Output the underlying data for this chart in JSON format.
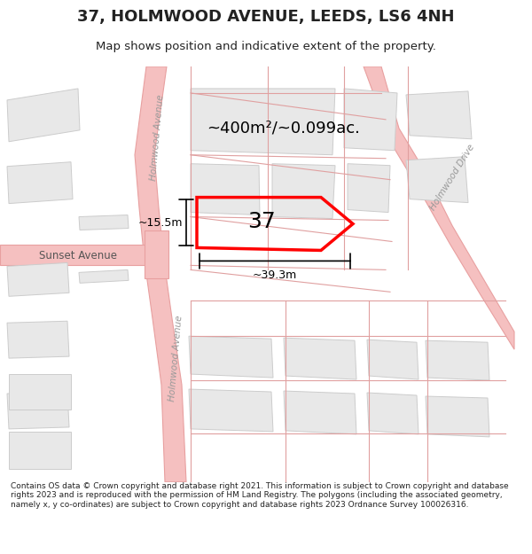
{
  "title": "37, HOLMWOOD AVENUE, LEEDS, LS6 4NH",
  "subtitle": "Map shows position and indicative extent of the property.",
  "footer": "Contains OS data © Crown copyright and database right 2021. This information is subject to Crown copyright and database rights 2023 and is reproduced with the permission of HM Land Registry. The polygons (including the associated geometry, namely x, y co-ordinates) are subject to Crown copyright and database rights 2023 Ordnance Survey 100026316.",
  "bg_color": "#ffffff",
  "road_color": "#f5c0c0",
  "road_outline": "#e8a0a0",
  "building_fill": "#e8e8e8",
  "building_outline": "#cccccc",
  "highlight_color": "#ff0000",
  "dim_color": "#e0a0a0",
  "text_color": "#222222",
  "area_label": "~400m²/~0.099ac.",
  "number_label": "37",
  "width_label": "~39.3m",
  "height_label": "~15.5m",
  "street_label_left": "Holmwood Avenue",
  "street_label_bottom": "Holmwood Avenue",
  "street_label_right": "Holmwood Drive",
  "street_label_sunset": "Sunset Avenue"
}
